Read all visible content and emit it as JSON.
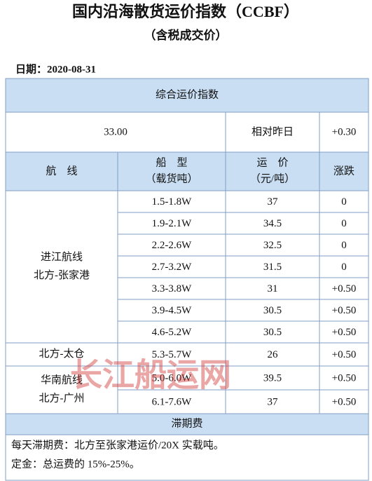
{
  "header": {
    "title": "国内沿海散货运价指数（CCBF）",
    "subtitle": "（含税成交价）",
    "date": "日期：2020-08-31"
  },
  "table": {
    "index_title": "综合运价指数",
    "index_value": "33.00",
    "compare_label": "相对昨日",
    "compare_value": "+0.30",
    "columns": [
      [
        "航　线"
      ],
      [
        "船　型",
        "（载货吨）"
      ],
      [
        "运　价",
        "（元/吨）"
      ],
      [
        "涨跌"
      ]
    ],
    "groups": [
      {
        "route": [
          "进江航线",
          "北方-张家港"
        ],
        "rows": [
          [
            "1.5-1.8W",
            "37",
            "0"
          ],
          [
            "1.9-2.1W",
            "34.5",
            "0"
          ],
          [
            "2.2-2.6W",
            "32.5",
            "0"
          ],
          [
            "2.7-3.2W",
            "31.5",
            "0"
          ],
          [
            "3.3-3.8W",
            "31",
            "+0.50"
          ],
          [
            "3.9-4.5W",
            "30.5",
            "+0.50"
          ],
          [
            "4.6-5.2W",
            "30.5",
            "+0.50"
          ]
        ]
      },
      {
        "route": [
          "北方-太仓"
        ],
        "rows": [
          [
            "5.3-5.7W",
            "26",
            "+0.50"
          ]
        ]
      },
      {
        "route": [
          "华南航线",
          "北方-广州"
        ],
        "rows": [
          [
            "5.0-6.0W",
            "39.5",
            "+0.50"
          ],
          [
            "6.1-7.6W",
            "37",
            "+0.50"
          ]
        ]
      }
    ],
    "demurrage_title": "滞期费",
    "notes": [
      "每天滞期费：北方至张家港运价/20X 实载吨。",
      "定金：总运费的 15%-25%。"
    ]
  },
  "watermark": "长江船运网"
}
